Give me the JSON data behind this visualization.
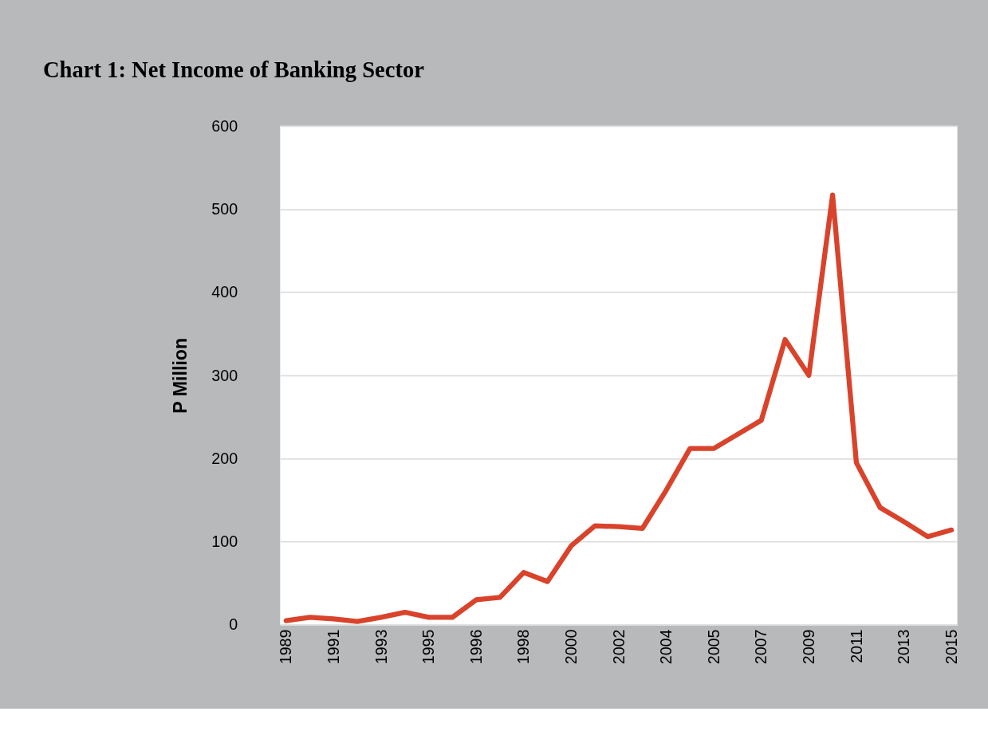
{
  "chart_data": {
    "type": "line",
    "title": "Chart 1: Net Income of Banking Sector",
    "ylabel": "P Million",
    "categories": [
      "1989",
      null,
      "1991",
      null,
      "1993",
      null,
      "1995",
      null,
      "1996",
      null,
      "1998",
      null,
      "2000",
      null,
      "2002",
      null,
      "2004",
      null,
      "2005",
      null,
      "2007",
      null,
      "2009",
      null,
      "2011",
      null,
      "2013",
      null,
      "2015"
    ],
    "series": [
      {
        "color": "#d9432b",
        "values": [
          5,
          9,
          7,
          4,
          9,
          15,
          9,
          9,
          30,
          33,
          63,
          52,
          95,
          119,
          118,
          116,
          162,
          212,
          212,
          229,
          246,
          343,
          300,
          517,
          195,
          141,
          124,
          106,
          114
        ]
      }
    ],
    "ylim": [
      0,
      600
    ],
    "yticks": [
      0,
      100,
      200,
      300,
      400,
      500,
      600
    ],
    "grid": "y",
    "legend": false,
    "marker": "none",
    "line_style": "solid"
  }
}
